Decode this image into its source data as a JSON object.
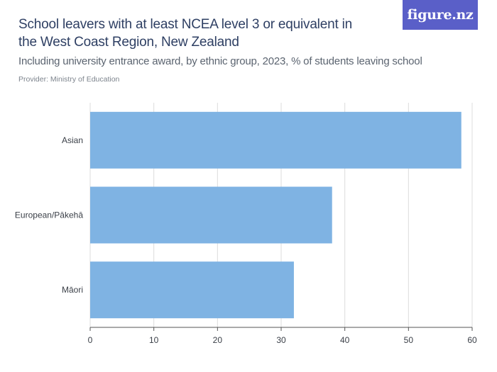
{
  "header": {
    "title": "School leavers with at least NCEA level 3 or equivalent in the West Coast Region, New Zealand",
    "subtitle": "Including university entrance award, by ethnic group, 2023, % of students leaving school",
    "provider": "Provider: Ministry of Education",
    "logo_text": "figure.nz"
  },
  "colors": {
    "bar": "#7fb3e3",
    "grid": "#dcdcdc",
    "axis": "#555555",
    "logo_bg": "#5a5fc8",
    "title": "#2e3f63"
  },
  "chart_data": {
    "type": "bar",
    "orientation": "horizontal",
    "categories": [
      "Asian",
      "European/Pākehā",
      "Māori"
    ],
    "values": [
      58.3,
      38.0,
      32.0
    ],
    "title": "School leavers with at least NCEA level 3 or equivalent in the West Coast Region, New Zealand",
    "xlabel": "",
    "ylabel": "",
    "xlim": [
      0,
      60
    ],
    "xticks": [
      0,
      10,
      20,
      30,
      40,
      50,
      60
    ],
    "grid": "vertical",
    "legend": "none"
  }
}
